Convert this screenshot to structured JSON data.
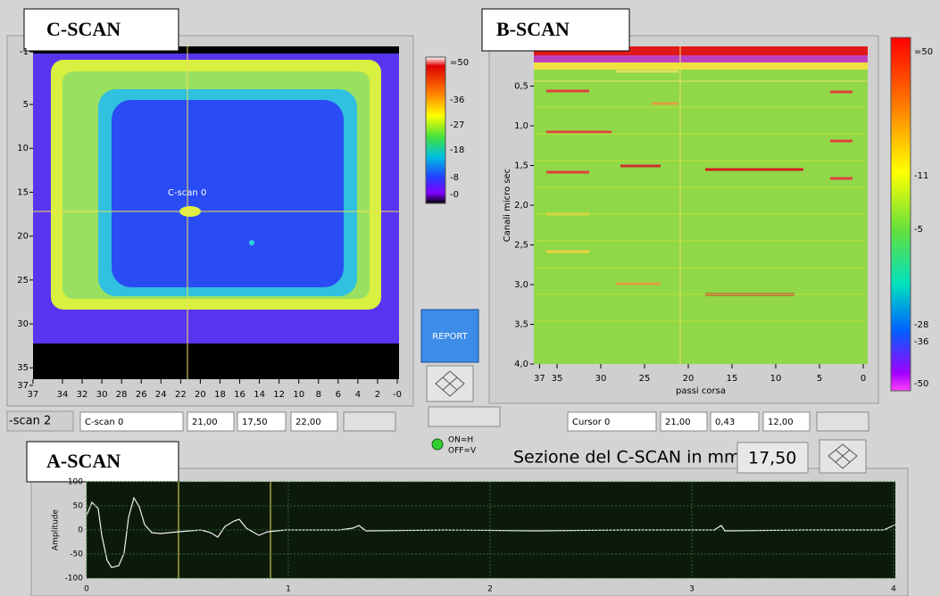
{
  "c_scan": {
    "title": "C-SCAN",
    "cursor_label": "C-scan 0",
    "yticks": [
      "-1",
      "5",
      "10",
      "15",
      "20",
      "25",
      "30",
      "35",
      "37"
    ],
    "xticks": [
      "37",
      "34",
      "32",
      "30",
      "28",
      "26",
      "24",
      "22",
      "20",
      "18",
      "16",
      "14",
      "12",
      "10",
      "8",
      "6",
      "4",
      "2",
      "-0"
    ],
    "colorbar": [
      "=50",
      "-36",
      "-27",
      "-18",
      "-8",
      "-0"
    ],
    "controls": {
      "tab": "-scan 2",
      "name": "C-scan 0",
      "x": "21,00",
      "y": "17,50",
      "z": "22,00"
    }
  },
  "b_scan": {
    "title": "B-SCAN",
    "ylabel": "Canali micro sec",
    "xlabel": "passi corsa",
    "yticks": [
      "0,5",
      "1,0",
      "1,5",
      "2,0",
      "2,5",
      "3,0",
      "3,5",
      "4,0"
    ],
    "xticks": [
      "37",
      "35",
      "30",
      "25",
      "20",
      "15",
      "10",
      "5",
      "0"
    ],
    "colorbar": [
      "=50",
      "-11",
      "-5",
      "-28",
      "-36",
      "-50"
    ],
    "controls": {
      "name": "Cursor 0",
      "x": "21,00",
      "y": "0,43",
      "z": "12,00"
    }
  },
  "report_button": "REPORT",
  "switch": {
    "on": "ON=H",
    "off": "OFF=V"
  },
  "section": {
    "label": "Sezione del C-SCAN in mm",
    "value": "17,50"
  },
  "a_scan": {
    "title": "A-SCAN",
    "ylabel": "Amplitude",
    "yticks": [
      "100",
      "50",
      "0",
      "-50",
      "-100"
    ],
    "xticks": [
      "0",
      "1",
      "2",
      "3",
      "4"
    ]
  }
}
